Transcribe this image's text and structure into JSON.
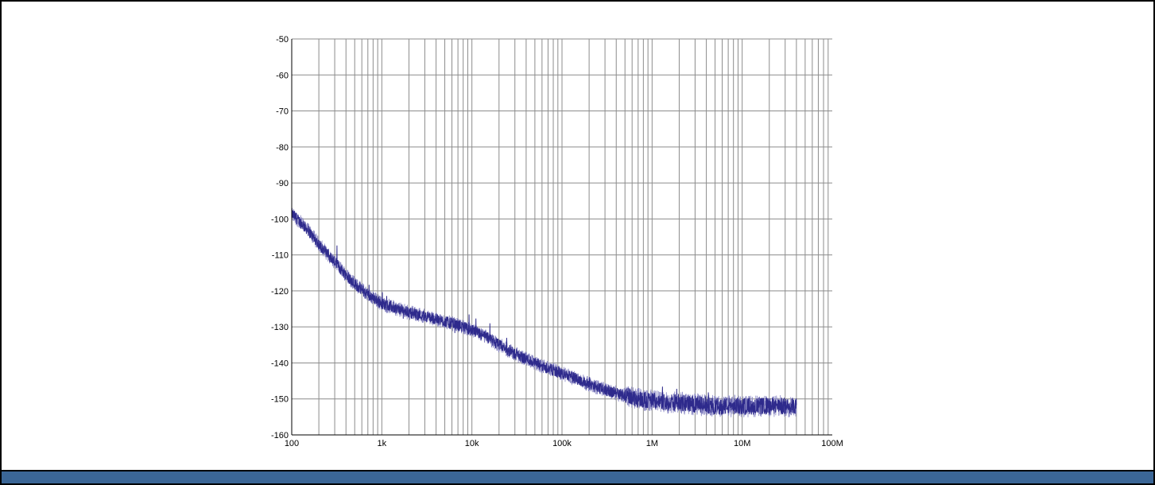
{
  "chart_data": {
    "type": "line",
    "title": "",
    "xlabel": "",
    "ylabel": "",
    "x_scale": "log",
    "xlim": [
      100,
      100000000
    ],
    "ylim": [
      -160,
      -50
    ],
    "grid": true,
    "x_ticks": [
      {
        "value": 100,
        "label": "100"
      },
      {
        "value": 1000,
        "label": "1k"
      },
      {
        "value": 10000,
        "label": "10k"
      },
      {
        "value": 100000,
        "label": "100k"
      },
      {
        "value": 1000000,
        "label": "1M"
      },
      {
        "value": 10000000,
        "label": "10M"
      },
      {
        "value": 100000000,
        "label": "100M"
      }
    ],
    "y_ticks": [
      {
        "value": -50,
        "label": "-50"
      },
      {
        "value": -60,
        "label": "-60"
      },
      {
        "value": -70,
        "label": "-70"
      },
      {
        "value": -80,
        "label": "-80"
      },
      {
        "value": -90,
        "label": "-90"
      },
      {
        "value": -100,
        "label": "-100"
      },
      {
        "value": -110,
        "label": "-110"
      },
      {
        "value": -120,
        "label": "-120"
      },
      {
        "value": -130,
        "label": "-130"
      },
      {
        "value": -140,
        "label": "-140"
      },
      {
        "value": -150,
        "label": "-150"
      },
      {
        "value": -160,
        "label": "-160"
      }
    ],
    "series": [
      {
        "color": "#2e2a8c",
        "x": [
          100,
          150,
          200,
          300,
          400,
          500,
          700,
          1000,
          1500,
          2000,
          3000,
          5000,
          7000,
          10000,
          15000,
          20000,
          30000,
          50000,
          70000,
          100000,
          150000,
          200000,
          300000,
          500000,
          700000,
          1000000,
          1500000,
          2000000,
          3000000,
          5000000,
          7000000,
          10000000,
          15000000,
          20000000,
          30000000,
          40000000
        ],
        "y": [
          -98.5,
          -103,
          -107,
          -112,
          -115.5,
          -118,
          -121,
          -123.5,
          -125,
          -126,
          -127,
          -128.5,
          -129.5,
          -131,
          -133,
          -135,
          -137.5,
          -140,
          -141.5,
          -143,
          -144.5,
          -146,
          -147.5,
          -149,
          -150,
          -150.5,
          -151,
          -151,
          -151.5,
          -152,
          -152,
          -152,
          -152,
          -152,
          -152,
          -152
        ]
      }
    ]
  },
  "colors": {
    "grid": "#8c8c8c",
    "trace": "#2e2a8c",
    "trace_noise": "#8a88c4",
    "bottom_bar": "#3b6696"
  }
}
